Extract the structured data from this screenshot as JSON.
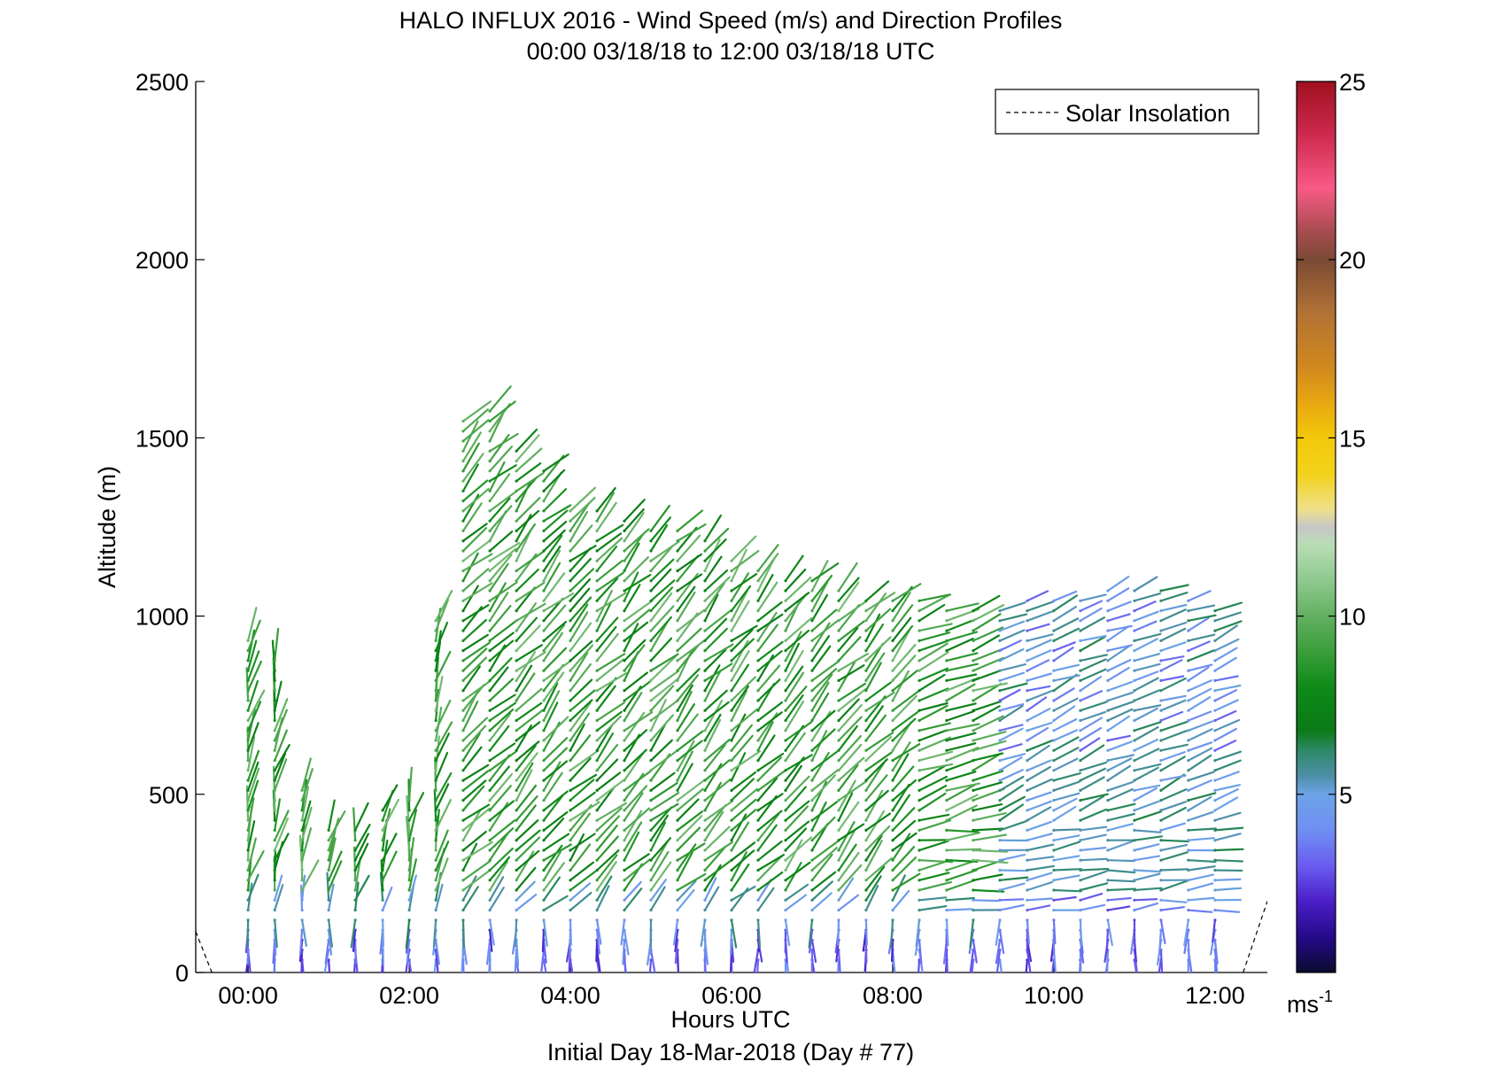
{
  "chart_data": {
    "type": "scatter",
    "title": "HALO INFLUX 2016 - Wind Speed (m/s) and Direction Profiles",
    "subtitle": "00:00 03/18/18 to 12:00 03/18/18  UTC",
    "xlabel": "Hours UTC",
    "ylabel": "Altitude (m)",
    "footer": "Initial Day 18-Mar-2018 (Day # 77)",
    "xlim": [
      -0.65,
      12.65
    ],
    "ylim": [
      0,
      2500
    ],
    "x_ticks": [
      0,
      2,
      4,
      6,
      8,
      10,
      12
    ],
    "x_tick_labels": [
      "00:00",
      "02:00",
      "04:00",
      "06:00",
      "08:00",
      "10:00",
      "12:00"
    ],
    "y_ticks": [
      0,
      500,
      1000,
      1500,
      2000,
      2500
    ],
    "y_tick_labels": [
      "0",
      "500",
      "1000",
      "1500",
      "2000",
      "2500"
    ],
    "legend": {
      "entries": [
        "Solar Insolation"
      ],
      "placement": "top-right"
    },
    "colorbar": {
      "range": [
        0,
        25
      ],
      "ticks": [
        5,
        10,
        15,
        20,
        25
      ],
      "tick_labels": [
        "5",
        "10",
        "15",
        "20",
        "25"
      ],
      "unit_label": "ms",
      "unit_exponent": "-1",
      "stops": [
        [
          0,
          "#0b0b2e"
        ],
        [
          1,
          "#250a8a"
        ],
        [
          2,
          "#4b1ec8"
        ],
        [
          3,
          "#6a5df0"
        ],
        [
          4,
          "#6f8ff2"
        ],
        [
          5,
          "#6ca3e8"
        ],
        [
          5.5,
          "#4e8fa8"
        ],
        [
          6.2,
          "#2f8a6a"
        ],
        [
          6.8,
          "#0b7a16"
        ],
        [
          8,
          "#0e8a18"
        ],
        [
          9,
          "#3a9e3a"
        ],
        [
          10,
          "#62b062"
        ],
        [
          11,
          "#8ec98e"
        ],
        [
          12,
          "#b9ddb5"
        ],
        [
          12.5,
          "#c7c7c7"
        ],
        [
          13,
          "#efe08a"
        ],
        [
          14,
          "#f2d21a"
        ],
        [
          15,
          "#f2c80a"
        ],
        [
          16,
          "#e8a712"
        ],
        [
          17,
          "#d0881e"
        ],
        [
          18.5,
          "#b27235"
        ],
        [
          20,
          "#7a4a34"
        ],
        [
          20.8,
          "#a84c50"
        ],
        [
          22,
          "#f85a85"
        ],
        [
          23.5,
          "#cd2a4e"
        ],
        [
          25,
          "#a01020"
        ]
      ]
    },
    "solar_insolation": [
      {
        "x": [
          -0.65,
          -0.45
        ],
        "y": [
          115,
          0
        ]
      },
      {
        "x": [
          12.35,
          12.65
        ],
        "y": [
          0,
          200
        ]
      }
    ],
    "wind_field": {
      "profile_times": [
        0,
        0.33,
        0.67,
        1.0,
        1.33,
        1.67,
        2.0,
        2.33,
        2.67,
        3.0,
        3.33,
        3.67,
        4.0,
        4.33,
        4.67,
        5.0,
        5.33,
        5.67,
        6.0,
        6.33,
        6.67,
        7.0,
        7.33,
        7.67,
        8.0,
        8.33,
        8.67,
        9.0,
        9.33,
        9.67,
        10.0,
        10.33,
        10.67,
        11.0,
        11.33,
        11.67,
        12.0
      ],
      "profile_tops_m": [
        950,
        900,
        520,
        400,
        420,
        480,
        500,
        1000,
        1550,
        1600,
        1480,
        1430,
        1300,
        1300,
        1280,
        1250,
        1250,
        1220,
        1180,
        1150,
        1120,
        1100,
        1080,
        1060,
        1050,
        1050,
        1040,
        1040,
        1040,
        1050,
        1050,
        1060,
        1080,
        1080,
        1080,
        1060,
        1030
      ],
      "level_spacing_m": 28,
      "notes_on_color": "speed ~2-4 m/s near surface (purple/blue), ~7-11 m/s aloft (green), ~3-5 m/s upper layers after 09:00"
    }
  }
}
